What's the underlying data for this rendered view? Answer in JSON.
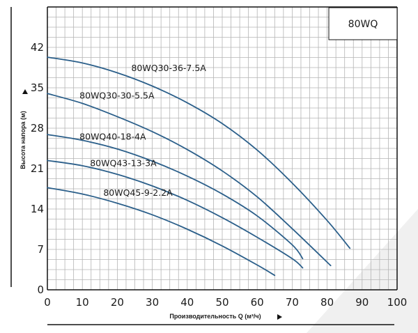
{
  "chart_data": {
    "type": "line",
    "model_label": "80WQ",
    "xlabel": "Производительность Q (м³/ч)",
    "ylabel": "Высота напора (м)",
    "xlim": [
      0,
      100
    ],
    "ylim": [
      0,
      49
    ],
    "x_ticks": [
      0,
      10,
      20,
      30,
      40,
      50,
      60,
      70,
      80,
      90,
      100
    ],
    "y_ticks": [
      0,
      7,
      14,
      21,
      28,
      35,
      42
    ],
    "grid": true,
    "colors": {
      "curve": "#2b5f8a",
      "grid": "#b4b4b4",
      "axis": "#111111",
      "watermark": "#ececec"
    },
    "series": [
      {
        "name": "80WQ30-36-7.5A",
        "x": [
          0,
          10,
          20,
          30,
          40,
          50,
          60,
          70,
          80,
          86.5
        ],
        "y": [
          40.3,
          39.3,
          37.6,
          35.3,
          32.4,
          28.8,
          24.2,
          18.5,
          12.0,
          7.2
        ]
      },
      {
        "name": "80WQ30-30-5.5A",
        "x": [
          0,
          10,
          20,
          30,
          40,
          50,
          60,
          70,
          81
        ],
        "y": [
          34.0,
          32.3,
          30.0,
          27.4,
          24.3,
          20.6,
          16.1,
          10.6,
          4.2
        ]
      },
      {
        "name": "80WQ40-18-4A",
        "x": [
          0,
          10,
          20,
          30,
          40,
          50,
          60,
          70,
          73
        ],
        "y": [
          26.9,
          25.9,
          24.4,
          22.3,
          19.7,
          16.6,
          12.8,
          7.8,
          5.4
        ]
      },
      {
        "name": "80WQ43-13-3A",
        "x": [
          0,
          10,
          20,
          30,
          40,
          50,
          60,
          70,
          73
        ],
        "y": [
          22.4,
          21.5,
          20.0,
          18.0,
          15.5,
          12.5,
          9.1,
          5.4,
          3.8
        ]
      },
      {
        "name": "80WQ45-9-2.2A",
        "x": [
          0,
          10,
          20,
          30,
          40,
          50,
          60,
          65
        ],
        "y": [
          17.7,
          16.6,
          15.0,
          13.0,
          10.5,
          7.6,
          4.3,
          2.5
        ]
      }
    ]
  }
}
